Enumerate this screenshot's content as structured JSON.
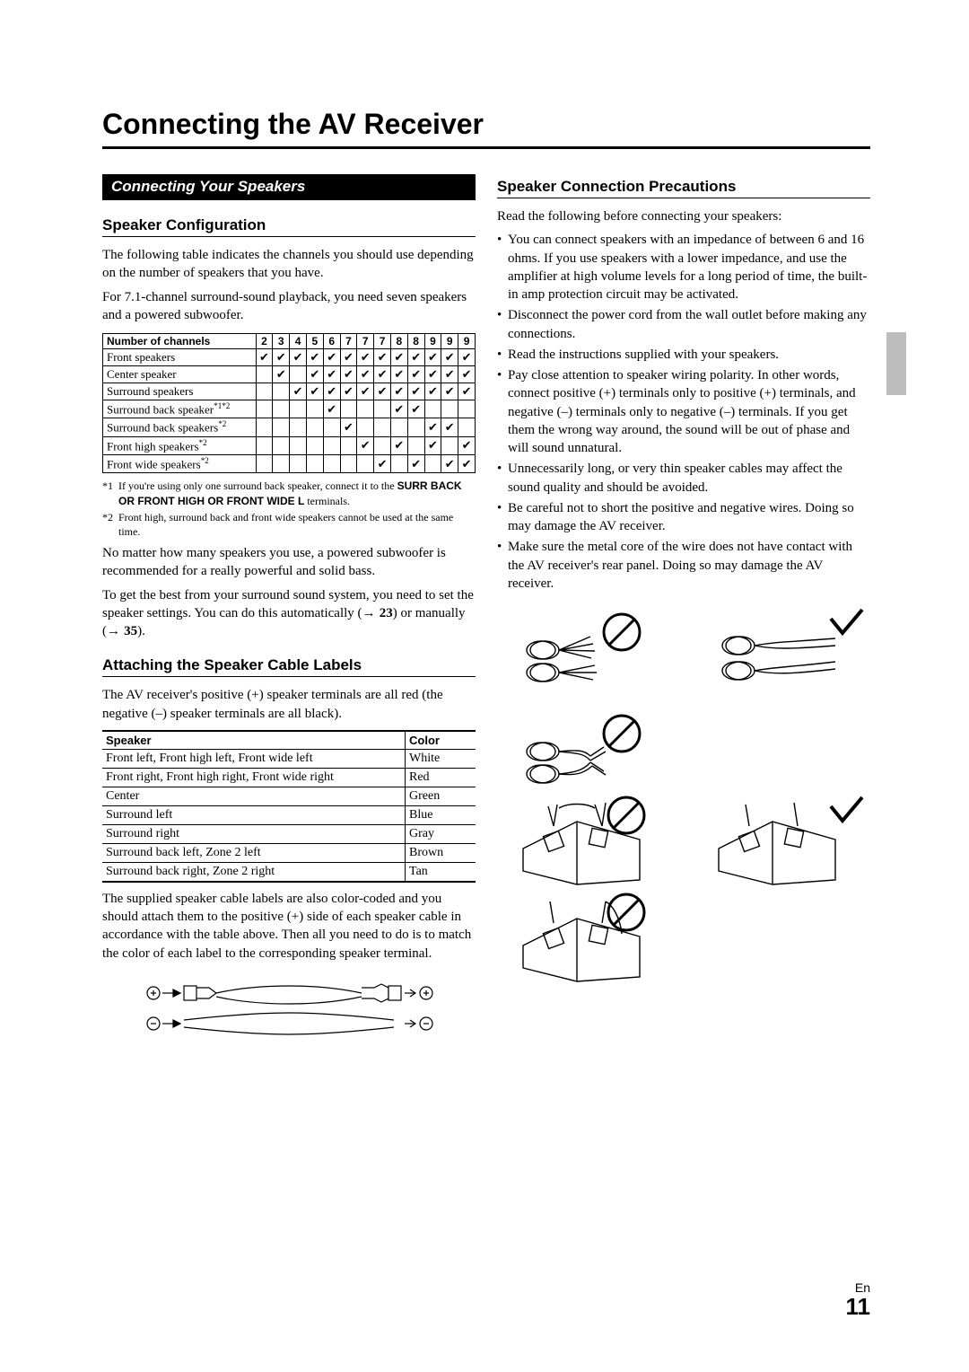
{
  "title": "Connecting the AV Receiver",
  "left": {
    "section_bar": "Connecting Your Speakers",
    "h_config": "Speaker Configuration",
    "p_config1": "The following table indicates the channels you should use depending on the number of speakers that you have.",
    "p_config2": "For 7.1-channel surround-sound playback, you need seven speakers and a powered subwoofer.",
    "channels_table": {
      "header_label": "Number of channels",
      "cols": [
        "2",
        "3",
        "4",
        "5",
        "6",
        "7",
        "7",
        "7",
        "8",
        "8",
        "9",
        "9",
        "9"
      ],
      "rows": [
        {
          "label": "Front speakers",
          "sup": "",
          "checks": [
            1,
            1,
            1,
            1,
            1,
            1,
            1,
            1,
            1,
            1,
            1,
            1,
            1
          ]
        },
        {
          "label": "Center speaker",
          "sup": "",
          "checks": [
            0,
            1,
            0,
            1,
            1,
            1,
            1,
            1,
            1,
            1,
            1,
            1,
            1
          ]
        },
        {
          "label": "Surround speakers",
          "sup": "",
          "checks": [
            0,
            0,
            1,
            1,
            1,
            1,
            1,
            1,
            1,
            1,
            1,
            1,
            1
          ]
        },
        {
          "label": "Surround back speaker",
          "sup": "*1*2",
          "checks": [
            0,
            0,
            0,
            0,
            1,
            0,
            0,
            0,
            1,
            1,
            0,
            0,
            0
          ]
        },
        {
          "label": "Surround back speakers",
          "sup": "*2",
          "checks": [
            0,
            0,
            0,
            0,
            0,
            1,
            0,
            0,
            0,
            0,
            1,
            1,
            0
          ]
        },
        {
          "label": "Front high speakers",
          "sup": "*2",
          "checks": [
            0,
            0,
            0,
            0,
            0,
            0,
            1,
            0,
            1,
            0,
            1,
            0,
            1
          ]
        },
        {
          "label": "Front wide speakers",
          "sup": "*2",
          "checks": [
            0,
            0,
            0,
            0,
            0,
            0,
            0,
            1,
            0,
            1,
            0,
            1,
            1
          ]
        }
      ]
    },
    "footnotes": [
      {
        "marker": "*1",
        "text_prefix": "If you're using only one surround back speaker, connect it to the ",
        "bold": "SURR BACK OR FRONT HIGH OR FRONT WIDE L",
        "text_suffix": " terminals."
      },
      {
        "marker": "*2",
        "text": "Front high, surround back and front wide speakers cannot be used at the same time."
      }
    ],
    "p_sub": "No matter how many speakers you use, a powered subwoofer is recommended for a really powerful and solid bass.",
    "p_best_prefix": "To get the best from your surround sound system, you need to set the speaker settings. You can do this automatically (",
    "ref1": "23",
    "p_best_mid": ") or manually (",
    "ref2": "35",
    "p_best_suffix": ").",
    "h_labels": "Attaching the Speaker Cable Labels",
    "p_labels1": "The AV receiver's positive (+) speaker terminals are all red (the negative (–) speaker terminals are all black).",
    "color_table": {
      "head": [
        "Speaker",
        "Color"
      ],
      "rows": [
        [
          "Front left, Front high left, Front wide left",
          "White"
        ],
        [
          "Front right, Front high right, Front wide right",
          "Red"
        ],
        [
          "Center",
          "Green"
        ],
        [
          "Surround left",
          "Blue"
        ],
        [
          "Surround right",
          "Gray"
        ],
        [
          "Surround back left, Zone 2 left",
          "Brown"
        ],
        [
          "Surround back right, Zone 2 right",
          "Tan"
        ]
      ]
    },
    "p_labels2": "The supplied speaker cable labels are also color-coded and you should attach them to the positive (+) side of each speaker cable in accordance with the table above. Then all you need to do is to match the color of each label to the corresponding speaker terminal."
  },
  "right": {
    "h_precautions": "Speaker Connection Precautions",
    "p_intro": "Read the following before connecting your speakers:",
    "bullets": [
      "You can connect speakers with an impedance of between 6 and 16 ohms. If you use speakers with a lower impedance, and use the amplifier at high volume levels for a long period of time, the built-in amp protection circuit may be activated.",
      "Disconnect the power cord from the wall outlet before making any connections.",
      "Read the instructions supplied with your speakers.",
      "Pay close attention to speaker wiring polarity. In other words, connect positive (+) terminals only to positive (+) terminals, and negative (–) terminals only to negative (–) terminals. If you get them the wrong way around, the sound will be out of phase and will sound unnatural.",
      "Unnecessarily long, or very thin speaker cables may affect the sound quality and should be avoided.",
      "Be careful not to short the positive and negative wires. Doing so may damage the AV receiver.",
      "Make sure the metal core of the wire does not have contact with the AV receiver's rear panel. Doing so may damage the AV receiver."
    ]
  },
  "page": {
    "lang": "En",
    "number": "11"
  },
  "colors": {
    "bg": "#ffffff",
    "fg": "#000000",
    "tab": "#bdbdbd"
  }
}
